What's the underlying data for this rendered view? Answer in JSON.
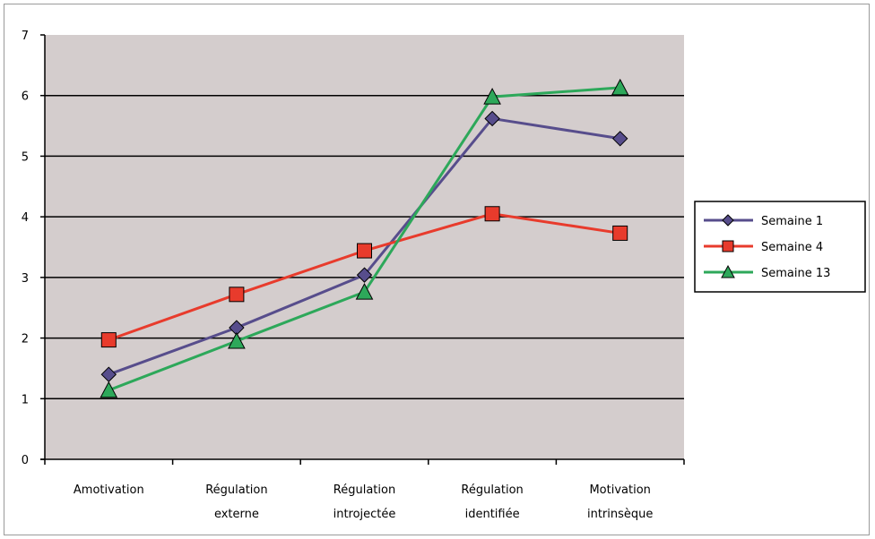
{
  "chart_data": {
    "type": "line",
    "categories": [
      [
        "Amotivation"
      ],
      [
        "Régulation",
        "externe"
      ],
      [
        "Régulation",
        "introjectée"
      ],
      [
        "Régulation",
        "identifiée"
      ],
      [
        "Motivation",
        "intrinsèque"
      ]
    ],
    "series": [
      {
        "name": "Semaine 1",
        "values": [
          1.4,
          2.17,
          3.04,
          5.62,
          5.29
        ],
        "color": "#574d8c",
        "marker": "diamond"
      },
      {
        "name": "Semaine 4",
        "values": [
          1.97,
          2.72,
          3.44,
          4.05,
          3.73
        ],
        "color": "#e83b2c",
        "marker": "square"
      },
      {
        "name": "Semaine 13",
        "values": [
          1.14,
          1.95,
          2.76,
          5.98,
          6.13
        ],
        "color": "#2da85a",
        "marker": "triangle"
      }
    ],
    "ylim": [
      0,
      7
    ],
    "yticks": [
      "0",
      "1",
      "2",
      "3",
      "4",
      "5",
      "6",
      "7"
    ],
    "grid": true,
    "plot_background": "#d4cdcd",
    "legend_position": "right",
    "title": "",
    "xlabel": "",
    "ylabel": ""
  }
}
